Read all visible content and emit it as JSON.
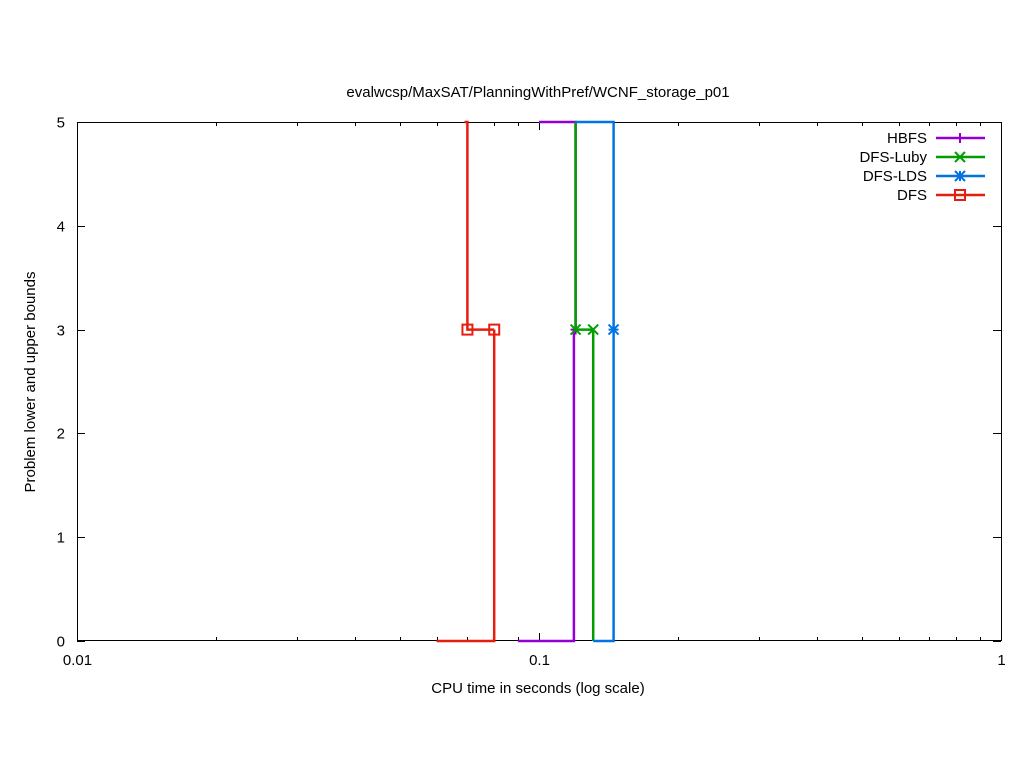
{
  "chart_data": {
    "type": "line",
    "title": "evalwcsp/MaxSAT/PlanningWithPref/WCNF_storage_p01",
    "xlabel": "CPU time in seconds (log scale)",
    "ylabel": "Problem lower and upper bounds",
    "xscale": "log",
    "xlim": [
      0.01,
      1
    ],
    "ylim": [
      0,
      5
    ],
    "grid": false,
    "legend_position": "top-right",
    "x_ticks": [
      {
        "value": 0.01,
        "label": "0.01"
      },
      {
        "value": 0.1,
        "label": "0.1"
      },
      {
        "value": 1,
        "label": "1"
      }
    ],
    "y_ticks": [
      {
        "value": 0,
        "label": "0"
      },
      {
        "value": 1,
        "label": "1"
      },
      {
        "value": 2,
        "label": "2"
      },
      {
        "value": 3,
        "label": "3"
      },
      {
        "value": 4,
        "label": "4"
      },
      {
        "value": 5,
        "label": "5"
      }
    ],
    "series": [
      {
        "name": "HBFS",
        "color": "#9400d3",
        "marker": "plus",
        "upper": [
          [
            0.1,
            5
          ],
          [
            0.12,
            5
          ],
          [
            0.12,
            3
          ]
        ],
        "lower": [
          [
            0.09,
            0
          ],
          [
            0.119,
            0
          ],
          [
            0.119,
            3
          ]
        ],
        "markers": [
          [
            0.12,
            3
          ]
        ]
      },
      {
        "name": "DFS-Luby",
        "color": "#009e00",
        "marker": "x",
        "upper": [
          [
            0.12,
            5
          ],
          [
            0.12,
            3
          ],
          [
            0.131,
            3
          ]
        ],
        "lower": [
          [
            0.131,
            0
          ],
          [
            0.131,
            3
          ]
        ],
        "markers": [
          [
            0.12,
            3
          ],
          [
            0.131,
            3
          ]
        ]
      },
      {
        "name": "DFS-LDS",
        "color": "#0073e6",
        "marker": "star",
        "upper": [
          [
            0.12,
            5
          ],
          [
            0.145,
            5
          ],
          [
            0.145,
            3
          ]
        ],
        "lower": [
          [
            0.131,
            0
          ],
          [
            0.145,
            0
          ],
          [
            0.145,
            3
          ]
        ],
        "markers": [
          [
            0.145,
            3
          ]
        ]
      },
      {
        "name": "DFS",
        "color": "#e51e10",
        "marker": "square",
        "upper": [
          [
            0.069,
            5
          ],
          [
            0.07,
            5
          ],
          [
            0.07,
            3
          ],
          [
            0.08,
            3
          ]
        ],
        "lower": [
          [
            0.06,
            0
          ],
          [
            0.08,
            0
          ],
          [
            0.08,
            3
          ]
        ],
        "markers": [
          [
            0.07,
            3
          ],
          [
            0.08,
            3
          ]
        ]
      }
    ]
  }
}
